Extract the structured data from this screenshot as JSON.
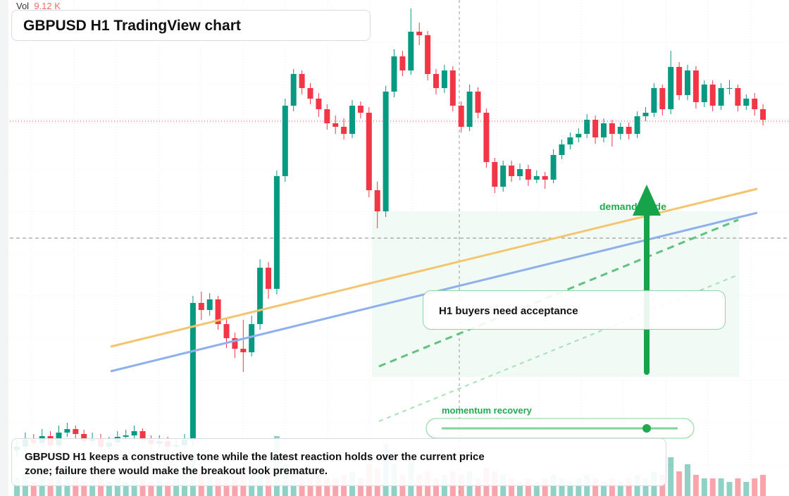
{
  "header": {
    "title": "GBPUSD H1 TradingView chart",
    "volume_label": "Vol",
    "volume_value": "9.12 K"
  },
  "chart_data": {
    "type": "candlestick",
    "ylim": [
      0,
      704
    ],
    "vlim": [
      0,
      30
    ],
    "up_color": "#089981",
    "down_color": "#f23645",
    "candles": [
      [
        65,
        80,
        58,
        70,
        5
      ],
      [
        70,
        90,
        64,
        80,
        6
      ],
      [
        80,
        88,
        68,
        75,
        4
      ],
      [
        75,
        95,
        70,
        85,
        7
      ],
      [
        85,
        92,
        66,
        72,
        5
      ],
      [
        72,
        100,
        68,
        90,
        6
      ],
      [
        90,
        104,
        84,
        95,
        8
      ],
      [
        95,
        100,
        80,
        88,
        5
      ],
      [
        88,
        94,
        72,
        78,
        4
      ],
      [
        78,
        90,
        72,
        82,
        5
      ],
      [
        82,
        88,
        62,
        70,
        6
      ],
      [
        70,
        84,
        64,
        76,
        4
      ],
      [
        76,
        92,
        70,
        84,
        5
      ],
      [
        84,
        94,
        78,
        86,
        4
      ],
      [
        86,
        100,
        80,
        92,
        6
      ],
      [
        92,
        96,
        74,
        80,
        5
      ],
      [
        80,
        86,
        66,
        74,
        4
      ],
      [
        74,
        86,
        68,
        78,
        5
      ],
      [
        78,
        84,
        62,
        70,
        4
      ],
      [
        70,
        80,
        64,
        72,
        5
      ],
      [
        72,
        88,
        66,
        80,
        6
      ],
      [
        80,
        284,
        70,
        274,
        12
      ],
      [
        274,
        290,
        250,
        264,
        7
      ],
      [
        264,
        288,
        256,
        279,
        6
      ],
      [
        279,
        284,
        236,
        244,
        5
      ],
      [
        244,
        252,
        210,
        224,
        6
      ],
      [
        224,
        232,
        196,
        209,
        5
      ],
      [
        209,
        250,
        176,
        204,
        7
      ],
      [
        204,
        256,
        198,
        244,
        6
      ],
      [
        244,
        336,
        236,
        324,
        8
      ],
      [
        324,
        332,
        280,
        294,
        6
      ],
      [
        294,
        462,
        286,
        454,
        17
      ],
      [
        454,
        564,
        446,
        554,
        9
      ],
      [
        554,
        606,
        546,
        599,
        7
      ],
      [
        599,
        604,
        570,
        579,
        5
      ],
      [
        579,
        586,
        556,
        564,
        5
      ],
      [
        564,
        572,
        538,
        549,
        6
      ],
      [
        549,
        556,
        520,
        529,
        5
      ],
      [
        529,
        540,
        514,
        524,
        5
      ],
      [
        524,
        536,
        506,
        514,
        6
      ],
      [
        514,
        562,
        508,
        554,
        7
      ],
      [
        554,
        560,
        536,
        544,
        5
      ],
      [
        544,
        552,
        424,
        434,
        9
      ],
      [
        434,
        446,
        380,
        404,
        8
      ],
      [
        404,
        582,
        396,
        574,
        15
      ],
      [
        574,
        634,
        566,
        624,
        9
      ],
      [
        624,
        632,
        596,
        604,
        6
      ],
      [
        604,
        692,
        598,
        659,
        10
      ],
      [
        659,
        672,
        640,
        654,
        6
      ],
      [
        654,
        660,
        590,
        599,
        7
      ],
      [
        599,
        606,
        570,
        579,
        5
      ],
      [
        579,
        612,
        572,
        604,
        6
      ],
      [
        604,
        610,
        546,
        554,
        7
      ],
      [
        554,
        560,
        516,
        524,
        6
      ],
      [
        524,
        584,
        518,
        574,
        7
      ],
      [
        574,
        580,
        536,
        544,
        5
      ],
      [
        544,
        550,
        466,
        474,
        8
      ],
      [
        474,
        480,
        430,
        439,
        7
      ],
      [
        439,
        476,
        432,
        469,
        6
      ],
      [
        469,
        476,
        446,
        454,
        5
      ],
      [
        454,
        472,
        448,
        464,
        4
      ],
      [
        464,
        470,
        440,
        449,
        5
      ],
      [
        449,
        462,
        444,
        454,
        4
      ],
      [
        454,
        460,
        436,
        449,
        5
      ],
      [
        449,
        492,
        444,
        484,
        6
      ],
      [
        484,
        506,
        478,
        499,
        5
      ],
      [
        499,
        516,
        492,
        509,
        4
      ],
      [
        509,
        522,
        502,
        514,
        5
      ],
      [
        514,
        542,
        508,
        534,
        6
      ],
      [
        534,
        540,
        500,
        509,
        5
      ],
      [
        509,
        536,
        502,
        529,
        4
      ],
      [
        529,
        534,
        496,
        514,
        5
      ],
      [
        514,
        530,
        506,
        524,
        4
      ],
      [
        524,
        530,
        506,
        514,
        5
      ],
      [
        514,
        546,
        508,
        539,
        6
      ],
      [
        539,
        552,
        532,
        544,
        5
      ],
      [
        544,
        586,
        538,
        579,
        7
      ],
      [
        579,
        584,
        540,
        549,
        6
      ],
      [
        549,
        632,
        542,
        609,
        11
      ],
      [
        609,
        616,
        562,
        569,
        7
      ],
      [
        569,
        612,
        562,
        604,
        9
      ],
      [
        604,
        610,
        550,
        559,
        6
      ],
      [
        559,
        590,
        552,
        584,
        5
      ],
      [
        584,
        590,
        546,
        554,
        5
      ],
      [
        554,
        586,
        548,
        579,
        5
      ],
      [
        579,
        590,
        570,
        579,
        4
      ],
      [
        579,
        584,
        546,
        554,
        5
      ],
      [
        554,
        570,
        548,
        564,
        4
      ],
      [
        564,
        572,
        540,
        549,
        5
      ],
      [
        549,
        556,
        526,
        534,
        6
      ]
    ]
  },
  "annotations": {
    "callout": "H1 buyers need acceptance",
    "zone_label": "demand guide",
    "indicator_label": "momentum recovery"
  },
  "caption": "GBPUSD H1 keeps a constructive tone while the latest reaction holds over the current price zone; failure there would make the breakout look premature."
}
